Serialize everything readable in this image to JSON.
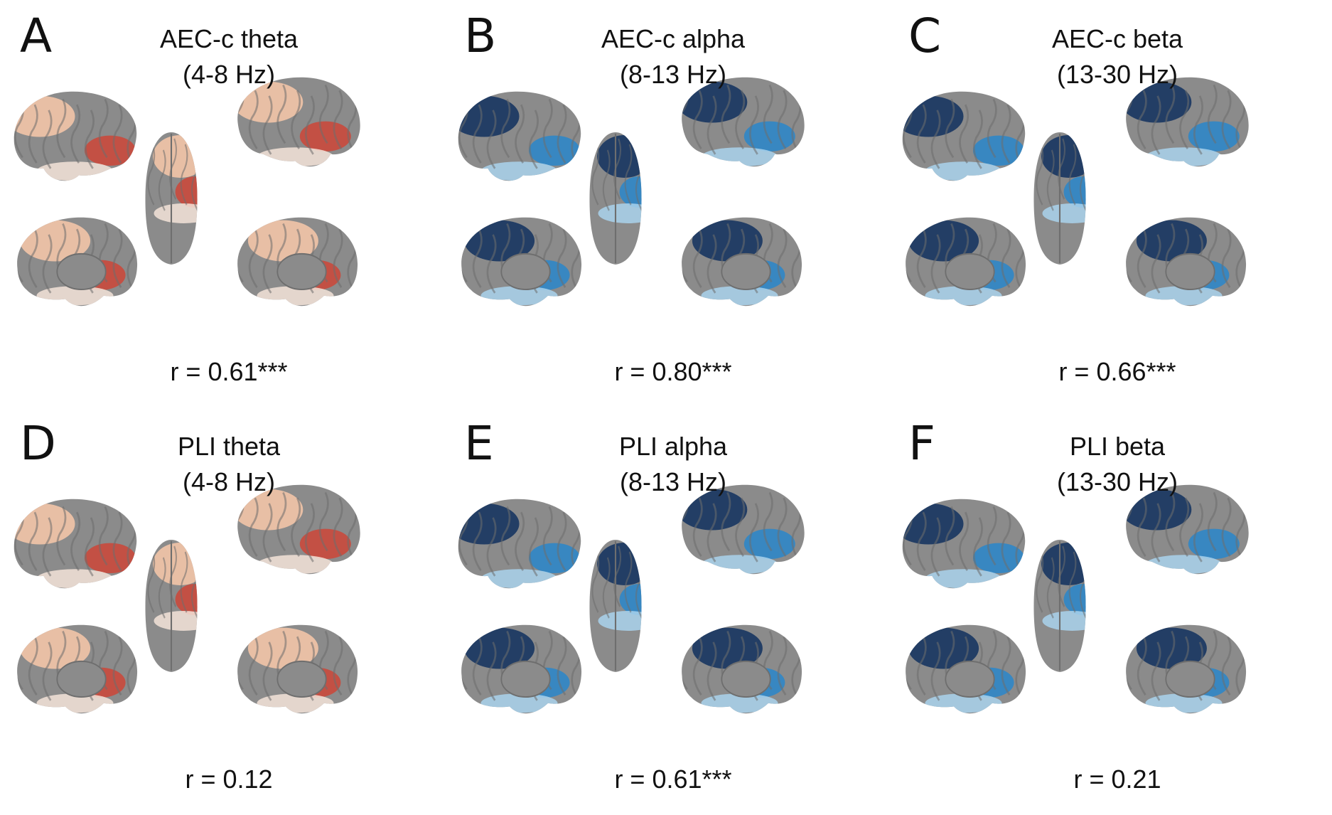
{
  "colors": {
    "cortex": "#8b8b8b",
    "cortex_dark": "#6e6e6e",
    "warm_light": "#edc2a6",
    "warm_pale": "#f3e3d8",
    "warm_strong": "#c9493c",
    "cool_dark": "#1d3a63",
    "cool_mid": "#2f86c7",
    "cool_light": "#a9d2ec"
  },
  "panels": [
    {
      "letter": "A",
      "title_line1": "AEC-c theta",
      "title_line2": "(4-8 Hz)",
      "stat": "r = 0.61***",
      "scheme": "warm"
    },
    {
      "letter": "B",
      "title_line1": "AEC-c alpha",
      "title_line2": "(8-13 Hz)",
      "stat": "r = 0.80***",
      "scheme": "cool"
    },
    {
      "letter": "C",
      "title_line1": "AEC-c beta",
      "title_line2": "(13-30 Hz)",
      "stat": "r = 0.66***",
      "scheme": "cool"
    },
    {
      "letter": "D",
      "title_line1": "PLI theta",
      "title_line2": "(4-8 Hz)",
      "stat": "r = 0.12",
      "scheme": "warm"
    },
    {
      "letter": "E",
      "title_line1": "PLI alpha",
      "title_line2": "(8-13 Hz)",
      "stat": "r = 0.61***",
      "scheme": "cool"
    },
    {
      "letter": "F",
      "title_line1": "PLI beta",
      "title_line2": "(13-30 Hz)",
      "stat": "r = 0.21",
      "scheme": "cool"
    }
  ]
}
